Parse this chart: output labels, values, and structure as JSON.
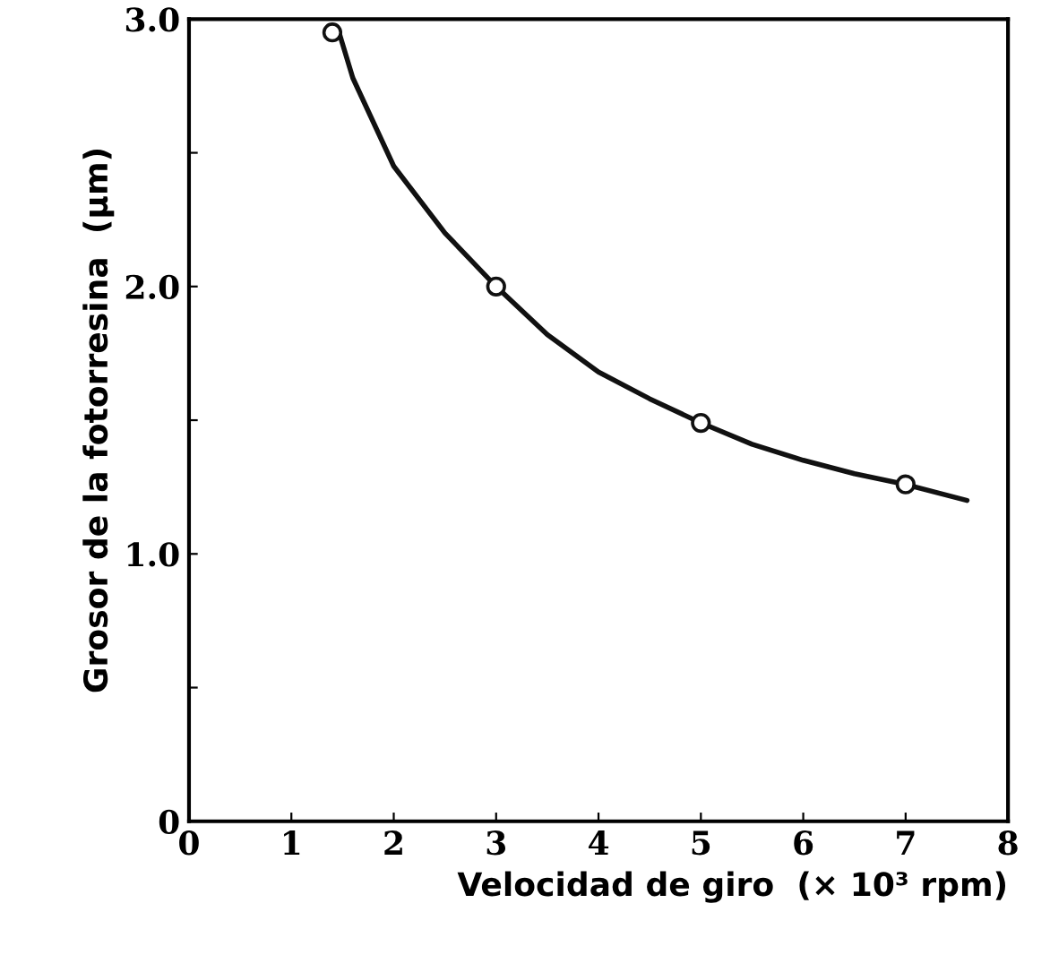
{
  "chart_data": {
    "type": "line",
    "xlabel": "Velocidad de giro  (× 10³ rpm)",
    "ylabel": "Grosor de la fotorresina  (μm)",
    "series": [
      {
        "color": "#111111",
        "marker": "none",
        "x": [
          1.45,
          1.6,
          2.0,
          2.5,
          3.0,
          3.5,
          4.0,
          4.5,
          5.0,
          5.5,
          6.0,
          6.5,
          7.0,
          7.6
        ],
        "values": [
          2.97,
          2.78,
          2.45,
          2.2,
          2.0,
          1.82,
          1.68,
          1.58,
          1.49,
          1.41,
          1.35,
          1.3,
          1.26,
          1.2
        ]
      },
      {
        "type": "scatter",
        "color": "#111111",
        "marker": "circle",
        "x": [
          1.4,
          3.0,
          5.0,
          7.0
        ],
        "values": [
          2.95,
          2.0,
          1.49,
          1.26
        ]
      }
    ],
    "xlim": [
      0,
      8
    ],
    "xticks": [
      0,
      1,
      2,
      3,
      4,
      5,
      6,
      7,
      8
    ],
    "ylim": [
      0,
      3
    ],
    "yticks": [
      0,
      {
        "value": 0.5,
        "label": null
      },
      {
        "value": 1.0,
        "label": "1.0"
      },
      {
        "value": 1.5,
        "label": null
      },
      {
        "value": 2.0,
        "label": "2.0"
      },
      {
        "value": 2.5,
        "label": null
      },
      {
        "value": 3.0,
        "label": "3.0"
      }
    ],
    "grid": false,
    "legend": false
  }
}
